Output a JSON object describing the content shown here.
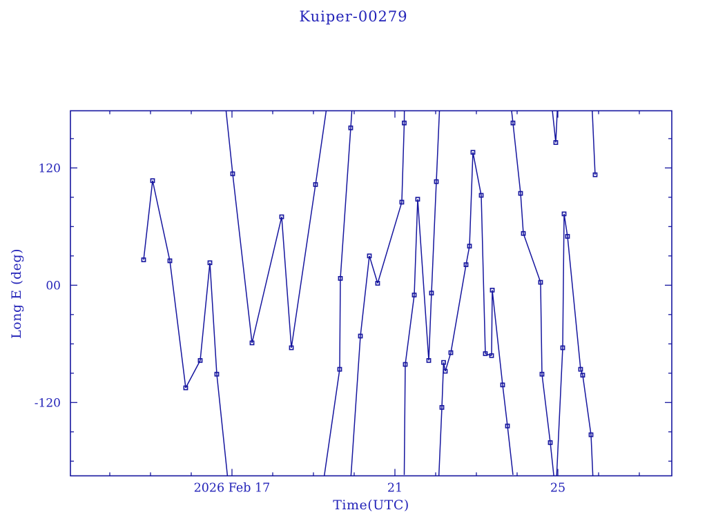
{
  "window": {
    "background": "#ffffff"
  },
  "colors": {
    "line": "#15159e",
    "frame": "#15159e",
    "text": "#2323b8",
    "background": "#ffffff"
  },
  "chart_data": {
    "type": "line",
    "title": "Kuiper-00279",
    "xlabel": "Time(UTC)",
    "ylabel": "Long E (deg)",
    "x_unit": "days since 2026 Feb 17 00:00 UTC",
    "xlim": [
      -3.966,
      10.797
    ],
    "ylim": [
      -195,
      178.5
    ],
    "grid": false,
    "legend": "none",
    "wrap_degrees": 360,
    "x_major_ticks": [
      {
        "t": 0,
        "label": "2026 Feb 17"
      },
      {
        "t": 4,
        "label": "21"
      },
      {
        "t": 8,
        "label": "25"
      }
    ],
    "x_minor_step_days": 1,
    "y_major_ticks": [
      {
        "v": 120,
        "label": "120"
      },
      {
        "v": 0,
        "label": "00"
      },
      {
        "v": -120,
        "label": "-120"
      }
    ],
    "y_minor_step_deg": 30,
    "marker": {
      "shape": "open-square",
      "size": 5.2
    },
    "series": [
      {
        "name": "Long E",
        "points": [
          [
            -2.169,
            26
          ],
          [
            -1.949,
            107
          ],
          [
            -1.525,
            25
          ],
          [
            -1.136,
            -105
          ],
          [
            -0.78,
            -77
          ],
          [
            -0.542,
            23
          ],
          [
            -0.373,
            -91
          ],
          [
            0.017,
            114
          ],
          [
            0.492,
            -59
          ],
          [
            1.22,
            70
          ],
          [
            1.458,
            -64
          ],
          [
            2.051,
            103
          ],
          [
            2.644,
            -86
          ],
          [
            2.661,
            7
          ],
          [
            2.915,
            161
          ],
          [
            3.153,
            -52
          ],
          [
            3.373,
            30
          ],
          [
            3.576,
            2
          ],
          [
            4.169,
            85
          ],
          [
            4.229,
            166
          ],
          [
            4.254,
            -81
          ],
          [
            4.475,
            -10
          ],
          [
            4.559,
            88
          ],
          [
            4.831,
            -77
          ],
          [
            4.898,
            -8
          ],
          [
            5.017,
            106
          ],
          [
            5.153,
            -125
          ],
          [
            5.195,
            -79
          ],
          [
            5.237,
            -88
          ],
          [
            5.373,
            -69
          ],
          [
            5.746,
            21
          ],
          [
            5.831,
            40
          ],
          [
            5.915,
            136
          ],
          [
            6.119,
            92
          ],
          [
            6.22,
            -70
          ],
          [
            6.373,
            -72
          ],
          [
            6.39,
            -5
          ],
          [
            6.644,
            -102
          ],
          [
            6.763,
            -144
          ],
          [
            6.898,
            166
          ],
          [
            7.085,
            94
          ],
          [
            7.153,
            53
          ],
          [
            7.576,
            3
          ],
          [
            7.61,
            -91
          ],
          [
            7.814,
            -161
          ],
          [
            7.949,
            146
          ],
          [
            8.119,
            -64
          ],
          [
            8.153,
            73
          ],
          [
            8.237,
            50
          ],
          [
            8.559,
            -86
          ],
          [
            8.61,
            -92
          ],
          [
            8.814,
            -153
          ],
          [
            8.915,
            113
          ]
        ]
      }
    ]
  }
}
